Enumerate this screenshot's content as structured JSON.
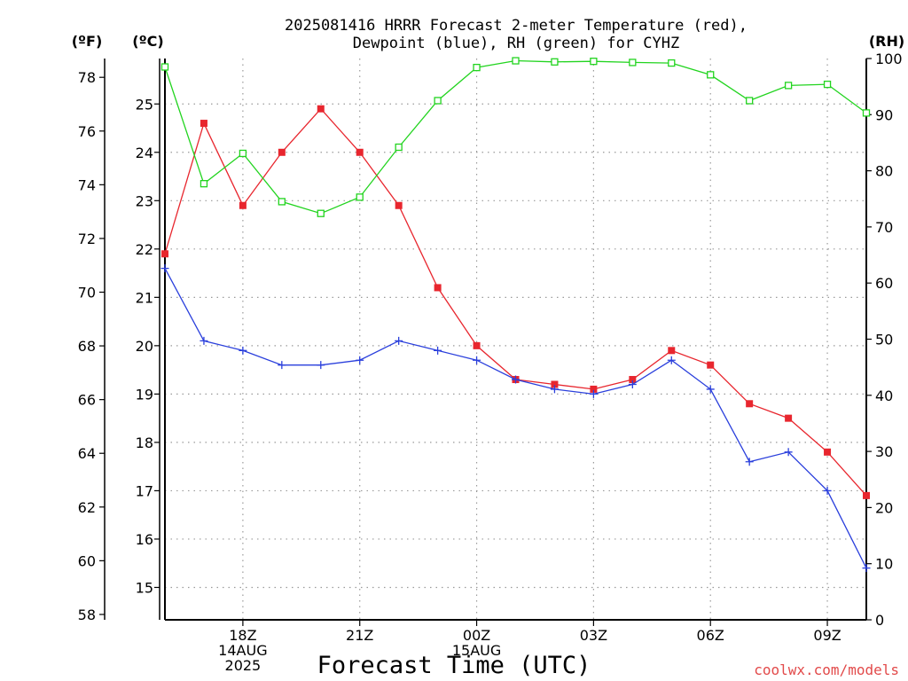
{
  "chart_data": {
    "type": "line",
    "title": [
      "2025081416 HRRR Forecast 2-meter Temperature (red),",
      "Dewpoint (blue), RH (green) for CYHZ"
    ],
    "xlabel": "Forecast Time (UTC)",
    "credit": "coolwx.com/models",
    "unit_labels": {
      "fahrenheit": "(ºF)",
      "celsius": "(ºC)",
      "rh": "(RH)"
    },
    "x_ticks": [
      {
        "hour": 2,
        "lines": [
          "18Z",
          "14AUG",
          "2025"
        ]
      },
      {
        "hour": 5,
        "lines": [
          "21Z"
        ]
      },
      {
        "hour": 8,
        "lines": [
          "00Z",
          "15AUG"
        ]
      },
      {
        "hour": 11,
        "lines": [
          "03Z"
        ]
      },
      {
        "hour": 14,
        "lines": [
          "06Z"
        ]
      },
      {
        "hour": 17,
        "lines": [
          "09Z"
        ]
      }
    ],
    "xlim": [
      0,
      18
    ],
    "axes": {
      "fahrenheit": {
        "side": "left",
        "ylim": [
          57.8,
          78.7
        ],
        "ticks": [
          58,
          60,
          62,
          64,
          66,
          68,
          70,
          72,
          74,
          76,
          78
        ]
      },
      "celsius": {
        "side": "left",
        "ylim": [
          14.33,
          25.94
        ],
        "ticks": [
          15,
          16,
          17,
          18,
          19,
          20,
          21,
          22,
          23,
          24,
          25
        ]
      },
      "rh": {
        "side": "right",
        "ylim": [
          0,
          100
        ],
        "ticks": [
          0,
          10,
          20,
          30,
          40,
          50,
          60,
          70,
          80,
          90,
          100
        ]
      }
    },
    "grid": true,
    "series": [
      {
        "name": "Temperature",
        "axis": "celsius",
        "color": "#e8262e",
        "marker": "filled-square",
        "x": [
          0,
          1,
          2,
          3,
          4,
          5,
          6,
          7,
          8,
          9,
          10,
          11,
          12,
          13,
          14,
          15,
          16,
          17,
          18
        ],
        "values": [
          21.9,
          24.6,
          22.9,
          24.0,
          24.9,
          24.0,
          22.9,
          21.2,
          20.0,
          19.3,
          19.2,
          19.1,
          19.3,
          19.9,
          19.6,
          18.8,
          18.5,
          17.8,
          16.9
        ]
      },
      {
        "name": "Dewpoint",
        "axis": "celsius",
        "color": "#2a3fdc",
        "marker": "plus",
        "x": [
          0,
          1,
          2,
          3,
          4,
          5,
          6,
          7,
          8,
          9,
          10,
          11,
          12,
          13,
          14,
          15,
          16,
          17,
          18
        ],
        "values": [
          21.6,
          20.1,
          19.9,
          19.6,
          19.6,
          19.7,
          20.1,
          19.9,
          19.7,
          19.3,
          19.1,
          19.0,
          19.2,
          19.7,
          19.1,
          17.6,
          17.8,
          17.0,
          15.4
        ]
      },
      {
        "name": "RH",
        "axis": "rh",
        "color": "#22d41f",
        "marker": "open-square",
        "x": [
          0,
          1,
          2,
          3,
          4,
          5,
          6,
          7,
          8,
          9,
          10,
          11,
          12,
          13,
          14,
          15,
          16,
          17,
          18
        ],
        "values": [
          98.5,
          77.7,
          83.1,
          74.5,
          72.4,
          75.3,
          84.2,
          92.5,
          98.4,
          99.6,
          99.4,
          99.5,
          99.3,
          99.2,
          97.1,
          92.5,
          95.2,
          95.4,
          90.3
        ]
      }
    ]
  }
}
